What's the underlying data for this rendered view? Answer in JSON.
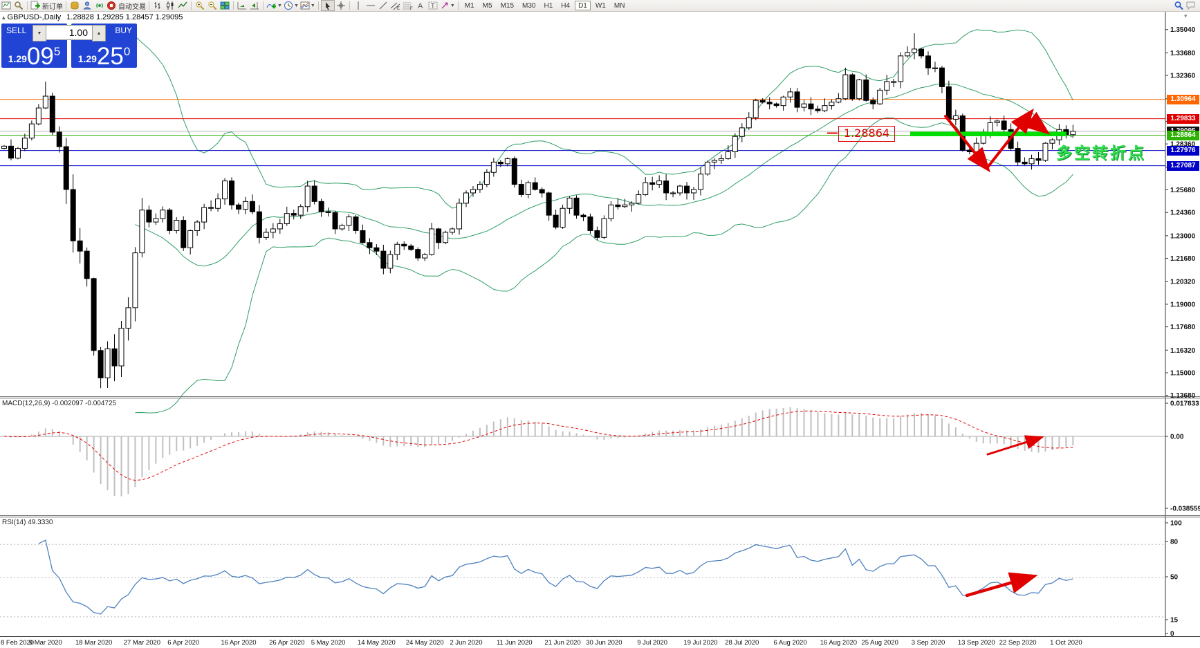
{
  "toolbar": {
    "new_order_label": "新订单",
    "autotrading_label": "自动交易",
    "timeframes": [
      "M1",
      "M5",
      "M15",
      "M30",
      "H1",
      "H4",
      "D1",
      "W1",
      "MN"
    ],
    "active_timeframe": "D1"
  },
  "chart_header": {
    "marker": "▴",
    "symbol": "GBPUSD-,Daily",
    "ohlc": "1.28828 1.29285 1.28457 1.29095"
  },
  "one_click": {
    "sell_label": "SELL",
    "buy_label": "BUY",
    "volume": "1.00",
    "vol_down": "▼",
    "vol_up": "▲",
    "sell_small": "1.29",
    "sell_big": "09",
    "sell_sup": "5",
    "buy_small": "1.29",
    "buy_big": "25",
    "buy_sup": "0"
  },
  "price_axis": {
    "ticks": [
      "1.35040",
      "1.33680",
      "1.32360",
      "1.31000",
      "1.29680",
      "1.28360",
      "1.27000",
      "1.25680",
      "1.24360",
      "1.23000",
      "1.21680",
      "1.20320",
      "1.19000",
      "1.17680",
      "1.16320",
      "1.15000",
      "1.13680"
    ],
    "flags": [
      {
        "text": "1.30964",
        "color": "#FF6600",
        "line": "#FF6600"
      },
      {
        "text": "1.29833",
        "color": "#E00000",
        "line": "#E00000"
      },
      {
        "text": "1.29095",
        "color": "#111111",
        "line": "#B8B8B8"
      },
      {
        "text": "1.28864",
        "color": "#2DB200",
        "line": "#2DB200"
      },
      {
        "text": "1.27976",
        "color": "#0000C8",
        "line": "#0000C8"
      },
      {
        "text": "1.27087",
        "color": "#0000C8",
        "line": "#0000C8"
      }
    ]
  },
  "annotations": {
    "level_text": "1.28864",
    "turning_text": "多空转折点",
    "red_arrow_color": "#E00000",
    "support_bar_color": "#00DE00"
  },
  "macd": {
    "label": "MACD(12,26,9) -0.002097 -0.004725",
    "axis": [
      "0.017833",
      "0.00",
      "-0.038559"
    ],
    "histogram_color": "#C0C0C0",
    "signal_color": "#E00000"
  },
  "rsi": {
    "label": "RSI(14) 49.3330",
    "axis": [
      "100",
      "80",
      "50",
      "15",
      "0"
    ],
    "levels": [
      80,
      50,
      15
    ],
    "line_color": "#4F81BD"
  },
  "date_axis": [
    "8 Feb 2020",
    "9 Mar 2020",
    "18 Mar 2020",
    "27 Mar 2020",
    "6 Apr 2020",
    "16 Apr 2020",
    "26 Apr 2020",
    "5 May 2020",
    "14 May 2020",
    "24 May 2020",
    "2 Jun 2020",
    "11 Jun 2020",
    "21 Jun 2020",
    "30 Jun 2020",
    "9 Jul 2020",
    "19 Jul 2020",
    "28 Jul 2020",
    "6 Aug 2020",
    "16 Aug 2020",
    "25 Aug 2020",
    "3 Sep 2020",
    "13 Sep 2020",
    "22 Sep 2020",
    "1 Oct 2020"
  ],
  "chart_data": {
    "type": "candlestick",
    "symbol": "GBPUSD",
    "timeframe": "Daily",
    "bands": {
      "period": 20,
      "deviation": 2,
      "color": "#2F9E64"
    },
    "closes": [
      1.2823,
      1.2753,
      1.281,
      1.287,
      1.2953,
      1.3046,
      1.3115,
      1.2905,
      1.282,
      1.257,
      1.227,
      1.221,
      1.205,
      1.163,
      1.147,
      1.164,
      1.154,
      1.176,
      1.188,
      1.22,
      1.245,
      1.238,
      1.24,
      1.245,
      1.233,
      1.239,
      1.223,
      1.233,
      1.238,
      1.2465,
      1.246,
      1.2515,
      1.262,
      1.248,
      1.2455,
      1.25,
      1.244,
      1.229,
      1.232,
      1.234,
      1.237,
      1.243,
      1.242,
      1.247,
      1.259,
      1.25,
      1.244,
      1.2435,
      1.234,
      1.236,
      1.241,
      1.233,
      1.226,
      1.223,
      1.221,
      1.211,
      1.219,
      1.225,
      1.224,
      1.222,
      1.217,
      1.219,
      1.234,
      1.226,
      1.232,
      1.234,
      1.249,
      1.255,
      1.257,
      1.26,
      1.267,
      1.273,
      1.272,
      1.275,
      1.26,
      1.254,
      1.261,
      1.257,
      1.255,
      1.242,
      1.235,
      1.246,
      1.252,
      1.242,
      1.241,
      1.233,
      1.229,
      1.24,
      1.248,
      1.247,
      1.248,
      1.249,
      1.254,
      1.261,
      1.26,
      1.262,
      1.255,
      1.255,
      1.259,
      1.255,
      1.257,
      1.266,
      1.273,
      1.274,
      1.275,
      1.279,
      1.288,
      1.293,
      1.299,
      1.309,
      1.308,
      1.307,
      1.306,
      1.311,
      1.314,
      1.305,
      1.307,
      1.304,
      1.303,
      1.306,
      1.308,
      1.31,
      1.324,
      1.31,
      1.321,
      1.309,
      1.307,
      1.315,
      1.32,
      1.32,
      1.335,
      1.337,
      1.339,
      1.335,
      1.328,
      1.328,
      1.317,
      1.298,
      1.3,
      1.28,
      1.279,
      1.284,
      1.289,
      1.296,
      1.297,
      1.292,
      1.281,
      1.273,
      1.272,
      1.275,
      1.274,
      1.284,
      1.286,
      1.292,
      1.289,
      1.291
    ],
    "wick_overrides": {
      "6": [
        1.32,
        1.304
      ],
      "13": [
        1.2055,
        1.16
      ],
      "14": [
        1.165,
        1.141
      ],
      "109": [
        1.31,
        1.2975
      ],
      "132": [
        1.3482,
        1.333
      ]
    },
    "date_label_indices": [
      0,
      6,
      13,
      20,
      26,
      34,
      41,
      47,
      54,
      61,
      67,
      74,
      81,
      87,
      94,
      101,
      107,
      114,
      121,
      127,
      134,
      141,
      147,
      154
    ],
    "up_color": "#ffffff",
    "down_color": "#000000",
    "outline_color": "#000000"
  }
}
